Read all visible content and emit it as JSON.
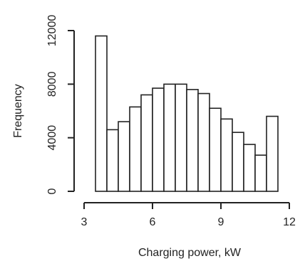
{
  "chart_data": {
    "type": "bar",
    "subtype": "histogram",
    "title": "",
    "xlabel": "Charging power, kW",
    "ylabel": "Frequency",
    "xlim": [
      3,
      12
    ],
    "ylim": [
      0,
      12000
    ],
    "x_ticks": [
      3,
      6,
      9,
      12
    ],
    "y_ticks": [
      0,
      4000,
      8000,
      12000
    ],
    "x_tick_labels": [
      "3",
      "6",
      "9",
      "12"
    ],
    "y_tick_labels": [
      "0",
      "4000",
      "8000",
      "12000"
    ],
    "grid": false,
    "legend": "none",
    "bin_edges": [
      3.5,
      4.0,
      4.5,
      5.0,
      5.5,
      6.0,
      6.5,
      7.0,
      7.5,
      8.0,
      8.5,
      9.0,
      9.5,
      10.0,
      10.5,
      11.0,
      11.5
    ],
    "values": [
      11600,
      4600,
      5200,
      6300,
      7200,
      7700,
      8000,
      8000,
      7600,
      7300,
      6200,
      5400,
      4400,
      3500,
      2700,
      5600
    ],
    "bar_fill": "#ffffff",
    "bar_stroke": "#222222"
  }
}
